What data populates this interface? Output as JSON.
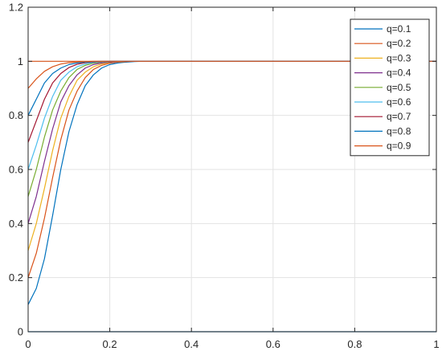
{
  "chart_data": {
    "type": "line",
    "title": "",
    "xlabel": "",
    "ylabel": "",
    "xlim": [
      0,
      1
    ],
    "ylim": [
      0,
      1.2
    ],
    "xticks": [
      0,
      0.2,
      0.4,
      0.6,
      0.8,
      1
    ],
    "xtick_labels": [
      "0",
      "0.2",
      "0.4",
      "0.6",
      "0.8",
      "1"
    ],
    "yticks": [
      0,
      0.2,
      0.4,
      0.6,
      0.8,
      1,
      1.2
    ],
    "ytick_labels": [
      "0",
      "0.2",
      "0.4",
      "0.6",
      "0.8",
      "1",
      "1.2"
    ],
    "grid": true,
    "legend_position": "top-right",
    "x": [
      0,
      0.02,
      0.04,
      0.06,
      0.08,
      0.1,
      0.12,
      0.14,
      0.16,
      0.18,
      0.2,
      0.22,
      0.24,
      0.26,
      0.28,
      0.3,
      0.4,
      0.5,
      0.6,
      0.7,
      0.8,
      0.9,
      1.0
    ],
    "series": [
      {
        "name": "q=0.1",
        "color": "#0072BD",
        "values": [
          0.1,
          0.16,
          0.27,
          0.43,
          0.6,
          0.74,
          0.84,
          0.91,
          0.95,
          0.975,
          0.988,
          0.994,
          0.997,
          0.999,
          1,
          1,
          1,
          1,
          1,
          1,
          1,
          1,
          1
        ]
      },
      {
        "name": "q=0.2",
        "color": "#D95319",
        "values": [
          0.2,
          0.29,
          0.42,
          0.57,
          0.71,
          0.82,
          0.89,
          0.94,
          0.97,
          0.985,
          0.993,
          0.997,
          0.999,
          1,
          1,
          1,
          1,
          1,
          1,
          1,
          1,
          1,
          1
        ]
      },
      {
        "name": "q=0.3",
        "color": "#EDB120",
        "values": [
          0.3,
          0.4,
          0.53,
          0.67,
          0.79,
          0.87,
          0.93,
          0.96,
          0.98,
          0.99,
          0.996,
          0.998,
          1,
          1,
          1,
          1,
          1,
          1,
          1,
          1,
          1,
          1,
          1
        ]
      },
      {
        "name": "q=0.4",
        "color": "#7E2F8E",
        "values": [
          0.4,
          0.5,
          0.63,
          0.75,
          0.85,
          0.91,
          0.95,
          0.975,
          0.988,
          0.994,
          0.997,
          0.999,
          1,
          1,
          1,
          1,
          1,
          1,
          1,
          1,
          1,
          1,
          1
        ]
      },
      {
        "name": "q=0.5",
        "color": "#77AC30",
        "values": [
          0.5,
          0.6,
          0.72,
          0.82,
          0.89,
          0.94,
          0.97,
          0.985,
          0.993,
          0.997,
          0.999,
          1,
          1,
          1,
          1,
          1,
          1,
          1,
          1,
          1,
          1,
          1,
          1
        ]
      },
      {
        "name": "q=0.6",
        "color": "#4DBEEE",
        "values": [
          0.6,
          0.69,
          0.79,
          0.87,
          0.93,
          0.96,
          0.98,
          0.99,
          0.996,
          0.998,
          1,
          1,
          1,
          1,
          1,
          1,
          1,
          1,
          1,
          1,
          1,
          1,
          1
        ]
      },
      {
        "name": "q=0.7",
        "color": "#A2142F",
        "values": [
          0.7,
          0.78,
          0.86,
          0.92,
          0.955,
          0.977,
          0.989,
          0.995,
          0.998,
          0.999,
          1,
          1,
          1,
          1,
          1,
          1,
          1,
          1,
          1,
          1,
          1,
          1,
          1
        ]
      },
      {
        "name": "q=0.8",
        "color": "#0072BD",
        "values": [
          0.8,
          0.86,
          0.92,
          0.955,
          0.975,
          0.988,
          0.994,
          0.997,
          0.999,
          1,
          1,
          1,
          1,
          1,
          1,
          1,
          1,
          1,
          1,
          1,
          1,
          1,
          1
        ]
      },
      {
        "name": "q=0.9",
        "color": "#D95319",
        "values": [
          0.9,
          0.935,
          0.963,
          0.98,
          0.99,
          0.995,
          0.998,
          0.999,
          1,
          1,
          1,
          1,
          1,
          1,
          1,
          1,
          1,
          1,
          1,
          1,
          1,
          1,
          1
        ]
      }
    ],
    "reference_lines": [
      {
        "y": 1,
        "color": "#D95319"
      },
      {
        "y": 0,
        "color": "#0072BD"
      }
    ]
  }
}
